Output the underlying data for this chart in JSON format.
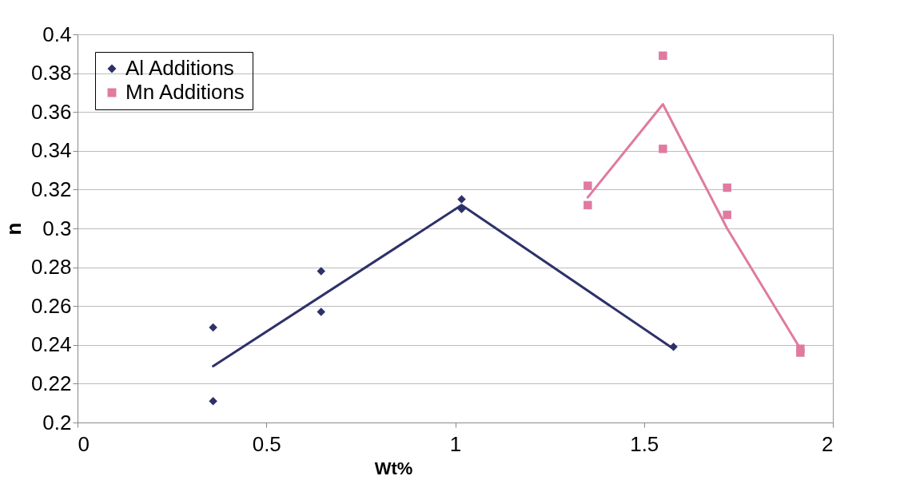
{
  "chart_data": {
    "type": "scatter",
    "xlabel": "Wt%",
    "ylabel": "n",
    "xlim": [
      0,
      2
    ],
    "xticks": [
      0,
      0.5,
      1,
      1.5,
      2
    ],
    "ylim": [
      0.2,
      0.4
    ],
    "yticks": [
      0.2,
      0.22,
      0.24,
      0.26,
      0.28,
      0.3,
      0.32,
      0.34,
      0.36,
      0.38,
      0.4
    ],
    "grid": "y",
    "legend": "top left",
    "series": [
      {
        "name": "Al Additions",
        "marker": "diamond",
        "color": "#2e3168",
        "x": [
          0.359,
          0.359,
          0.645,
          0.645,
          1.017,
          1.017,
          1.578
        ],
        "values": [
          0.249,
          0.211,
          0.278,
          0.257,
          0.315,
          0.31,
          0.239
        ]
      },
      {
        "name": "Mn Additions",
        "marker": "square",
        "color": "#e07aa0",
        "x": [
          1.351,
          1.351,
          1.55,
          1.55,
          1.72,
          1.72,
          1.914,
          1.914
        ],
        "values": [
          0.322,
          0.312,
          0.389,
          0.341,
          0.321,
          0.307,
          0.238,
          0.236
        ]
      },
      {
        "type": "line",
        "marker": "none",
        "color": "#2e3168",
        "x": [
          0.359,
          1.017,
          1.578
        ],
        "values": [
          0.229,
          0.312,
          0.238
        ]
      },
      {
        "type": "line",
        "marker": "none",
        "color": "#e07aa0",
        "x": [
          1.351,
          1.55,
          1.72,
          1.914
        ],
        "values": [
          0.316,
          0.364,
          0.3,
          0.238
        ]
      }
    ]
  }
}
